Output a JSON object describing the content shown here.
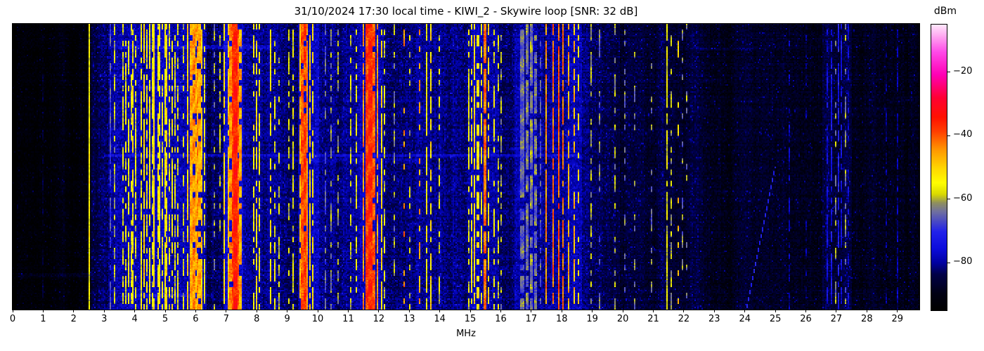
{
  "figure": {
    "background": "#ffffff"
  },
  "chart_data": {
    "type": "heatmap",
    "title": "31/10/2024 17:30 local time - KIWI_2 - Skywire loop [SNR: 32 dB]",
    "datetime": "31/10/2024 17:30 local time",
    "station": "KIWI_2",
    "antenna": "Skywire loop",
    "snr_db": 32,
    "xlabel": "MHz",
    "x_range": [
      0,
      29.72
    ],
    "x_tick_values": [
      0,
      1,
      2,
      3,
      4,
      5,
      6,
      7,
      8,
      9,
      10,
      11,
      12,
      13,
      14,
      15,
      16,
      17,
      18,
      19,
      20,
      21,
      22,
      23,
      24,
      25,
      26,
      27,
      28,
      29
    ],
    "x_tick_labels": [
      "0",
      "1",
      "2",
      "3",
      "4",
      "5",
      "6",
      "7",
      "8",
      "9",
      "10",
      "11",
      "12",
      "13",
      "14",
      "15",
      "16",
      "17",
      "18",
      "19",
      "20",
      "21",
      "22",
      "23",
      "24",
      "25",
      "26",
      "27",
      "28",
      "29"
    ],
    "y_axis": "time (unlabeled, newest at top)",
    "grid": {
      "cols": 645,
      "rows": 204
    },
    "seed": 7,
    "colorbar": {
      "label": "dBm",
      "vmin": -95,
      "vmax": -5,
      "tick_values": [
        -20,
        -40,
        -60,
        -80
      ],
      "tick_labels": [
        "−20",
        "−40",
        "−60",
        "−80"
      ],
      "palette_stops": [
        [
          0.0,
          "#000000"
        ],
        [
          0.055,
          "#000012"
        ],
        [
          0.125,
          "#000048"
        ],
        [
          0.165,
          "#0000a0"
        ],
        [
          0.215,
          "#0c0cdc"
        ],
        [
          0.275,
          "#2222ea"
        ],
        [
          0.345,
          "#7070a0"
        ],
        [
          0.375,
          "#8f8f60"
        ],
        [
          0.405,
          "#d8d800"
        ],
        [
          0.445,
          "#ffff00"
        ],
        [
          0.5,
          "#ffd400"
        ],
        [
          0.56,
          "#ff9900"
        ],
        [
          0.625,
          "#ff4000"
        ],
        [
          0.675,
          "#ff1200"
        ],
        [
          0.745,
          "#ff0033"
        ],
        [
          0.825,
          "#ff00b5"
        ],
        [
          0.905,
          "#ff4ae8"
        ],
        [
          0.965,
          "#ffaef2"
        ],
        [
          1.0,
          "#ffe6fb"
        ]
      ]
    },
    "noise_floor_segments": [
      [
        0.0,
        0.15,
        -97
      ],
      [
        0.15,
        2.45,
        -93
      ],
      [
        2.45,
        2.58,
        -90
      ],
      [
        2.58,
        3.15,
        -84
      ],
      [
        3.15,
        3.55,
        -82
      ],
      [
        3.55,
        4.15,
        -80
      ],
      [
        4.15,
        5.45,
        -79
      ],
      [
        5.45,
        5.7,
        -81
      ],
      [
        5.7,
        6.35,
        -78
      ],
      [
        6.35,
        6.9,
        -82
      ],
      [
        6.9,
        7.55,
        -77
      ],
      [
        7.55,
        8.2,
        -81
      ],
      [
        8.2,
        8.85,
        -82
      ],
      [
        8.85,
        9.35,
        -83
      ],
      [
        9.35,
        10.05,
        -79
      ],
      [
        10.05,
        11.4,
        -82
      ],
      [
        11.4,
        12.15,
        -78
      ],
      [
        12.15,
        13.2,
        -82
      ],
      [
        13.2,
        14.05,
        -80
      ],
      [
        14.05,
        14.4,
        -82
      ],
      [
        14.4,
        15.0,
        -81
      ],
      [
        15.0,
        15.95,
        -80
      ],
      [
        15.95,
        16.45,
        -83
      ],
      [
        16.45,
        17.4,
        -80
      ],
      [
        17.4,
        18.65,
        -80
      ],
      [
        18.65,
        19.9,
        -84
      ],
      [
        19.9,
        21.25,
        -86
      ],
      [
        21.25,
        22.0,
        -85
      ],
      [
        22.0,
        22.5,
        -87
      ],
      [
        22.5,
        26.55,
        -89
      ],
      [
        26.55,
        27.5,
        -85
      ],
      [
        27.5,
        28.6,
        -89
      ],
      [
        28.6,
        29.72,
        -90
      ]
    ],
    "carriers": [
      [
        0.55,
        -88,
        0.04,
        0.5
      ],
      [
        1.0,
        -87,
        0.04,
        0.5
      ],
      [
        1.62,
        -80,
        0.03,
        0.8
      ],
      [
        2.3,
        -82,
        0.03,
        0.6
      ],
      [
        2.5,
        -55,
        0.04,
        1.0
      ],
      [
        3.2,
        -68,
        0.04,
        0.8
      ],
      [
        3.33,
        -60,
        0.04,
        0.7
      ],
      [
        3.62,
        -57,
        0.04,
        0.6
      ],
      [
        3.7,
        -56,
        0.04,
        0.6
      ],
      [
        3.8,
        -55,
        0.05,
        0.65
      ],
      [
        3.88,
        -57,
        0.04,
        0.55
      ],
      [
        3.95,
        -54,
        0.05,
        0.8
      ],
      [
        4.03,
        -57,
        0.04,
        0.6
      ],
      [
        4.1,
        -60,
        0.04,
        0.5
      ],
      [
        4.22,
        -55,
        0.05,
        0.8
      ],
      [
        4.31,
        -51,
        0.06,
        0.85
      ],
      [
        4.4,
        -56,
        0.04,
        0.7
      ],
      [
        4.5,
        -54,
        0.05,
        0.8
      ],
      [
        4.58,
        -57,
        0.04,
        0.6
      ],
      [
        4.65,
        -52,
        0.05,
        0.85
      ],
      [
        4.75,
        -55,
        0.05,
        0.7
      ],
      [
        4.83,
        -53,
        0.05,
        0.8
      ],
      [
        4.92,
        -56,
        0.04,
        0.6
      ],
      [
        5.0,
        -54,
        0.04,
        0.9
      ],
      [
        5.06,
        -52,
        0.05,
        0.85
      ],
      [
        5.15,
        -57,
        0.04,
        0.6
      ],
      [
        5.25,
        -55,
        0.05,
        0.7
      ],
      [
        5.33,
        -58,
        0.04,
        0.55
      ],
      [
        5.42,
        -56,
        0.04,
        0.6
      ],
      [
        5.6,
        -58,
        0.04,
        0.5
      ],
      [
        5.75,
        -50,
        0.06,
        0.85
      ],
      [
        5.85,
        -46,
        0.07,
        0.9
      ],
      [
        5.95,
        -44,
        0.07,
        0.9
      ],
      [
        6.02,
        -47,
        0.06,
        0.85
      ],
      [
        6.07,
        -45,
        0.06,
        0.9
      ],
      [
        6.13,
        -46,
        0.06,
        0.85
      ],
      [
        6.19,
        -50,
        0.05,
        0.8
      ],
      [
        6.28,
        -56,
        0.04,
        0.6
      ],
      [
        6.6,
        -62,
        0.04,
        0.4
      ],
      [
        6.79,
        -58,
        0.04,
        0.5
      ],
      [
        6.92,
        -52,
        0.04,
        0.7
      ],
      [
        7.06,
        -48,
        0.06,
        0.8
      ],
      [
        7.14,
        -44,
        0.07,
        0.85
      ],
      [
        7.22,
        -38,
        0.1,
        0.95
      ],
      [
        7.3,
        -35,
        0.12,
        0.97
      ],
      [
        7.38,
        -40,
        0.1,
        0.9
      ],
      [
        7.46,
        -46,
        0.06,
        0.8
      ],
      [
        7.6,
        -55,
        0.04,
        0.6
      ],
      [
        7.74,
        -57,
        0.04,
        0.5
      ],
      [
        7.9,
        -54,
        0.05,
        0.6
      ],
      [
        8.0,
        -52,
        0.05,
        0.7
      ],
      [
        8.1,
        -55,
        0.04,
        0.6
      ],
      [
        8.25,
        -57,
        0.04,
        0.5
      ],
      [
        8.46,
        -53,
        0.05,
        0.7
      ],
      [
        8.6,
        -56,
        0.04,
        0.5
      ],
      [
        8.75,
        -58,
        0.04,
        0.45
      ],
      [
        9.05,
        -58,
        0.04,
        0.5
      ],
      [
        9.2,
        -56,
        0.04,
        0.55
      ],
      [
        9.41,
        -48,
        0.06,
        0.85
      ],
      [
        9.5,
        -40,
        0.09,
        0.95
      ],
      [
        9.58,
        -38,
        0.09,
        0.95
      ],
      [
        9.66,
        -44,
        0.07,
        0.9
      ],
      [
        9.75,
        -50,
        0.05,
        0.8
      ],
      [
        9.84,
        -54,
        0.05,
        0.7
      ],
      [
        10.0,
        -56,
        0.04,
        0.6
      ],
      [
        10.25,
        -66,
        0.04,
        0.5
      ],
      [
        10.45,
        -62,
        0.04,
        0.5
      ],
      [
        10.65,
        -60,
        0.04,
        0.5
      ],
      [
        10.87,
        -50,
        0.03,
        0.97
      ],
      [
        11.1,
        -58,
        0.04,
        0.5
      ],
      [
        11.25,
        -56,
        0.04,
        0.55
      ],
      [
        11.5,
        -44,
        0.08,
        0.9
      ],
      [
        11.6,
        -38,
        0.09,
        0.95
      ],
      [
        11.73,
        -36,
        0.1,
        0.96
      ],
      [
        11.86,
        -40,
        0.09,
        0.93
      ],
      [
        11.96,
        -45,
        0.07,
        0.88
      ],
      [
        12.08,
        -52,
        0.05,
        0.75
      ],
      [
        12.2,
        -57,
        0.04,
        0.6
      ],
      [
        12.5,
        -62,
        0.03,
        0.4
      ],
      [
        12.83,
        -44,
        0.04,
        0.3
      ],
      [
        13.0,
        -58,
        0.04,
        0.4
      ],
      [
        13.35,
        -46,
        0.04,
        0.35
      ],
      [
        13.57,
        -54,
        0.05,
        0.7
      ],
      [
        13.7,
        -52,
        0.05,
        0.75
      ],
      [
        13.87,
        -56,
        0.04,
        0.6
      ],
      [
        14.0,
        -58,
        0.04,
        0.5
      ],
      [
        14.1,
        -60,
        0.03,
        0.4
      ],
      [
        14.95,
        -56,
        0.05,
        0.6
      ],
      [
        15.05,
        -54,
        0.05,
        0.7
      ],
      [
        15.15,
        -50,
        0.05,
        0.8
      ],
      [
        15.25,
        -53,
        0.05,
        0.7
      ],
      [
        15.35,
        -55,
        0.04,
        0.6
      ],
      [
        15.48,
        -42,
        0.06,
        0.9
      ],
      [
        15.6,
        -52,
        0.05,
        0.7
      ],
      [
        15.77,
        -56,
        0.04,
        0.5
      ],
      [
        15.9,
        -58,
        0.04,
        0.45
      ],
      [
        16.0,
        -60,
        0.04,
        0.45
      ],
      [
        16.22,
        -62,
        0.03,
        0.4
      ],
      [
        16.7,
        -65,
        0.1,
        0.85
      ],
      [
        16.85,
        -64,
        0.1,
        0.85
      ],
      [
        17.0,
        -63,
        0.1,
        0.85
      ],
      [
        17.15,
        -64,
        0.09,
        0.8
      ],
      [
        17.3,
        -66,
        0.08,
        0.7
      ],
      [
        17.5,
        -44,
        0.06,
        0.85
      ],
      [
        17.6,
        -52,
        0.04,
        0.95
      ],
      [
        17.73,
        -42,
        0.06,
        0.9
      ],
      [
        17.9,
        -40,
        0.07,
        0.93
      ],
      [
        18.05,
        -42,
        0.06,
        0.9
      ],
      [
        18.22,
        -46,
        0.06,
        0.85
      ],
      [
        18.4,
        -48,
        0.05,
        0.6
      ],
      [
        18.55,
        -52,
        0.05,
        0.5
      ],
      [
        18.7,
        -62,
        0.03,
        0.45
      ],
      [
        18.95,
        -60,
        0.03,
        0.5
      ],
      [
        19.25,
        -64,
        0.03,
        0.35
      ],
      [
        19.45,
        -58,
        0.03,
        0.8
      ],
      [
        19.75,
        -60,
        0.03,
        0.45
      ],
      [
        20.08,
        -64,
        0.03,
        0.35
      ],
      [
        20.4,
        -63,
        0.03,
        0.35
      ],
      [
        20.95,
        -64,
        0.03,
        0.3
      ],
      [
        21.1,
        -66,
        0.03,
        0.3
      ],
      [
        21.45,
        -57,
        0.04,
        0.85
      ],
      [
        21.6,
        -60,
        0.04,
        0.45
      ],
      [
        21.8,
        -50,
        0.04,
        0.25
      ],
      [
        21.95,
        -64,
        0.03,
        0.3
      ],
      [
        22.1,
        -62,
        0.03,
        0.25
      ],
      [
        22.3,
        -72,
        0.03,
        0.4
      ],
      [
        22.9,
        -80,
        0.03,
        0.7
      ],
      [
        23.4,
        -82,
        0.03,
        0.5
      ],
      [
        24.0,
        -83,
        0.03,
        0.4
      ],
      [
        24.65,
        -60,
        0.03,
        0.45
      ],
      [
        25.45,
        -79,
        0.03,
        0.6
      ],
      [
        26.0,
        -82,
        0.03,
        0.4
      ],
      [
        26.7,
        -76,
        0.04,
        0.7
      ],
      [
        26.85,
        -74,
        0.04,
        0.7
      ],
      [
        26.96,
        -62,
        0.04,
        0.3
      ],
      [
        27.08,
        -73,
        0.05,
        0.8
      ],
      [
        27.18,
        -75,
        0.04,
        0.7
      ],
      [
        27.3,
        -63,
        0.04,
        0.3
      ],
      [
        27.4,
        -77,
        0.04,
        0.6
      ],
      [
        28.2,
        -81,
        0.03,
        0.6
      ],
      [
        28.65,
        -82,
        0.03,
        0.5
      ],
      [
        29.0,
        -80,
        0.03,
        0.6
      ],
      [
        29.35,
        -83,
        0.03,
        0.4
      ]
    ],
    "time_events": [
      [
        0.08,
        3.5,
        8.5,
        4,
        0.006
      ],
      [
        0.088,
        22.4,
        24.3,
        3,
        0.007
      ],
      [
        0.224,
        4.15,
        5.65,
        5,
        0.008
      ],
      [
        0.435,
        16.3,
        18.4,
        4,
        0.006
      ],
      [
        0.462,
        3.0,
        18.6,
        5,
        0.005
      ],
      [
        0.478,
        8.6,
        13.5,
        3,
        0.005
      ],
      [
        0.88,
        0.0,
        2.6,
        4,
        0.006
      ],
      [
        0.951,
        3.55,
        6.55,
        5,
        0.005
      ]
    ],
    "chirp": {
      "f_start_mhz": 25.0,
      "f_end_mhz": 24.05,
      "row_frac_start": 0.5,
      "row_frac_end": 1.0,
      "level_dbm": -71
    }
  }
}
